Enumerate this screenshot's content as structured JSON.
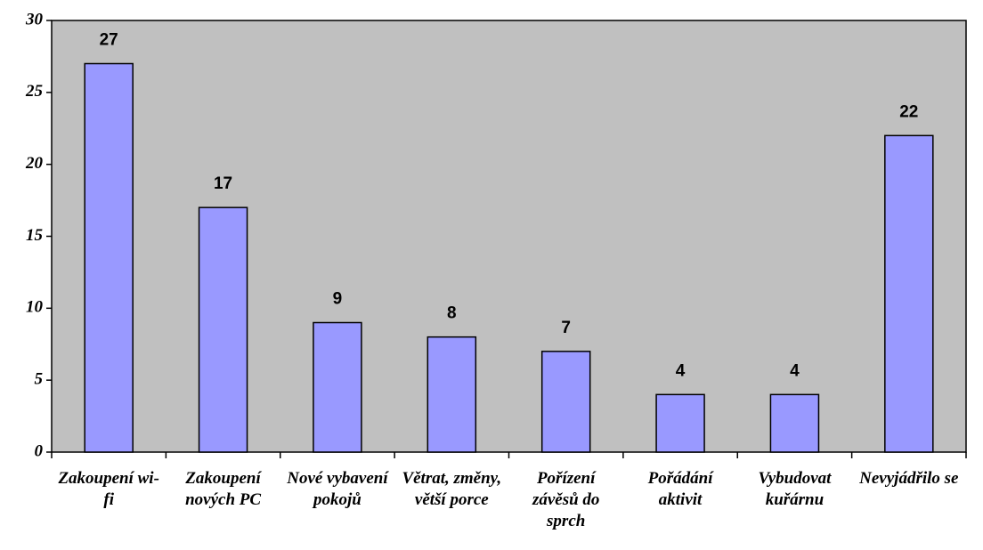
{
  "chart_data": {
    "type": "bar",
    "categories": [
      "Zakoupení wi-fi",
      "Zakoupení nových PC",
      "Nové vybavení pokojů",
      "Větrat, změny, větší porce",
      "Pořízení závěsů do sprch",
      "Pořádání aktivit",
      "Vybudovat kuřárnu",
      "Nevyjádřilo se"
    ],
    "values": [
      27,
      17,
      9,
      8,
      7,
      4,
      4,
      22
    ],
    "color": "#9999ff",
    "background": "#c0c0c0",
    "ylim": [
      0,
      30
    ],
    "yticks": [
      0,
      5,
      10,
      15,
      20,
      25,
      30
    ],
    "grid": false
  }
}
